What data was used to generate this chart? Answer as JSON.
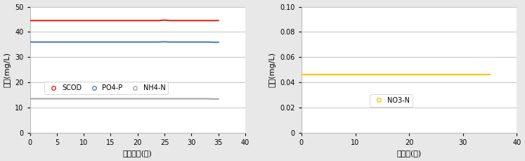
{
  "chart1": {
    "x": [
      0,
      1,
      2,
      3,
      4,
      5,
      6,
      7,
      8,
      9,
      10,
      11,
      12,
      13,
      14,
      15,
      16,
      17,
      18,
      19,
      20,
      21,
      22,
      23,
      24,
      25,
      26,
      27,
      28,
      29,
      30,
      31,
      32,
      33,
      34,
      35
    ],
    "SCOD": [
      44.5,
      44.5,
      44.5,
      44.5,
      44.5,
      44.5,
      44.5,
      44.5,
      44.5,
      44.5,
      44.5,
      44.5,
      44.5,
      44.5,
      44.5,
      44.5,
      44.5,
      44.5,
      44.5,
      44.5,
      44.5,
      44.5,
      44.5,
      44.5,
      44.5,
      44.7,
      44.5,
      44.5,
      44.5,
      44.5,
      44.5,
      44.5,
      44.5,
      44.5,
      44.5,
      44.5
    ],
    "PO4P": [
      36.0,
      36.0,
      36.0,
      36.0,
      36.0,
      36.0,
      36.0,
      36.0,
      36.0,
      36.0,
      36.0,
      36.0,
      36.0,
      36.0,
      36.0,
      36.0,
      36.0,
      36.0,
      36.0,
      36.0,
      36.0,
      36.0,
      36.0,
      36.0,
      36.0,
      36.1,
      36.0,
      36.0,
      36.0,
      36.0,
      36.0,
      36.0,
      36.0,
      36.0,
      35.9,
      35.9
    ],
    "NH4N": [
      13.5,
      13.5,
      13.5,
      13.5,
      13.5,
      13.5,
      13.5,
      13.5,
      13.5,
      13.5,
      13.5,
      13.5,
      13.5,
      13.5,
      13.5,
      13.5,
      13.5,
      13.5,
      13.5,
      13.5,
      13.5,
      13.5,
      13.5,
      13.5,
      13.5,
      13.5,
      13.5,
      13.5,
      13.5,
      13.5,
      13.5,
      13.5,
      13.5,
      13.5,
      13.4,
      13.4
    ],
    "SCOD_color": "#d9291c",
    "PO4P_color": "#4f81bd",
    "NH4N_color": "#a6a6a6",
    "ylim": [
      0,
      50
    ],
    "yticks": [
      0,
      10,
      20,
      30,
      40,
      50
    ],
    "xlim": [
      0,
      40
    ],
    "xticks": [
      0,
      5,
      10,
      15,
      20,
      25,
      30,
      35,
      40
    ],
    "ylabel": "농도(mg/L)",
    "xlabel": "운전기간(일)",
    "legend_labels": [
      "SCOD",
      "PO4-P",
      "NH4-N"
    ]
  },
  "chart2": {
    "x": [
      0,
      1,
      2,
      3,
      4,
      5,
      6,
      7,
      8,
      9,
      10,
      11,
      12,
      13,
      14,
      15,
      16,
      17,
      18,
      19,
      20,
      21,
      22,
      23,
      24,
      25,
      26,
      27,
      28,
      29,
      30,
      31,
      32,
      33,
      34,
      35
    ],
    "NO3N": [
      0.046,
      0.046,
      0.046,
      0.046,
      0.046,
      0.046,
      0.046,
      0.046,
      0.046,
      0.046,
      0.046,
      0.046,
      0.046,
      0.046,
      0.046,
      0.046,
      0.046,
      0.046,
      0.046,
      0.046,
      0.046,
      0.046,
      0.046,
      0.046,
      0.046,
      0.046,
      0.046,
      0.046,
      0.046,
      0.046,
      0.046,
      0.046,
      0.046,
      0.046,
      0.046,
      0.046
    ],
    "NO3N_color": "#ffc000",
    "ylim": [
      0,
      0.1
    ],
    "yticks": [
      0,
      0.02,
      0.04,
      0.06,
      0.08,
      0.1
    ],
    "xlim": [
      0,
      40
    ],
    "xticks": [
      0,
      10,
      20,
      30,
      40
    ],
    "ylabel": "농도(mg/L)",
    "xlabel": "운기간(일)",
    "legend_labels": [
      "NO3-N"
    ]
  },
  "background_color": "#e8e8e8",
  "plot_bg_color": "#ffffff",
  "font_size": 7.5,
  "legend_font_size": 7,
  "label_font_size": 8,
  "tick_font_size": 7
}
